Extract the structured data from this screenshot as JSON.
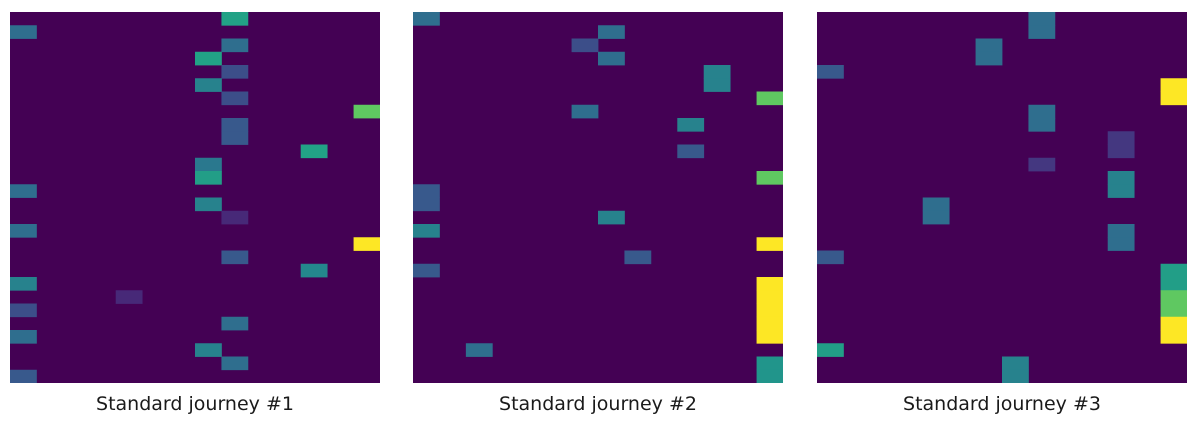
{
  "chart_data": [
    {
      "type": "heatmap",
      "title": "Standard journey #1",
      "rows": 28,
      "cols": 14,
      "colormap": "viridis",
      "value_range": [
        0,
        1
      ],
      "background_value": 0,
      "cells": [
        {
          "row": 0,
          "col": 8,
          "value": 0.72
        },
        {
          "row": 1,
          "col": 0,
          "value": 0.45
        },
        {
          "row": 2,
          "col": 8,
          "value": 0.45
        },
        {
          "row": 3,
          "col": 7,
          "value": 0.72
        },
        {
          "row": 4,
          "col": 8,
          "value": 0.3
        },
        {
          "row": 5,
          "col": 7,
          "value": 0.55
        },
        {
          "row": 6,
          "col": 8,
          "value": 0.3
        },
        {
          "row": 7,
          "col": 13,
          "value": 0.85
        },
        {
          "row": 8,
          "col": 8,
          "value": 0.35
        },
        {
          "row": 9,
          "col": 8,
          "value": 0.35
        },
        {
          "row": 10,
          "col": 11,
          "value": 0.72
        },
        {
          "row": 11,
          "col": 7,
          "value": 0.5
        },
        {
          "row": 12,
          "col": 7,
          "value": 0.7
        },
        {
          "row": 13,
          "col": 0,
          "value": 0.45
        },
        {
          "row": 14,
          "col": 7,
          "value": 0.55
        },
        {
          "row": 15,
          "col": 8,
          "value": 0.15
        },
        {
          "row": 16,
          "col": 0,
          "value": 0.45
        },
        {
          "row": 17,
          "col": 13,
          "value": 1.0
        },
        {
          "row": 18,
          "col": 8,
          "value": 0.35
        },
        {
          "row": 19,
          "col": 11,
          "value": 0.58
        },
        {
          "row": 20,
          "col": 0,
          "value": 0.55
        },
        {
          "row": 21,
          "col": 4,
          "value": 0.15
        },
        {
          "row": 22,
          "col": 0,
          "value": 0.3
        },
        {
          "row": 23,
          "col": 8,
          "value": 0.45
        },
        {
          "row": 24,
          "col": 0,
          "value": 0.45
        },
        {
          "row": 25,
          "col": 7,
          "value": 0.55
        },
        {
          "row": 26,
          "col": 8,
          "value": 0.45
        },
        {
          "row": 27,
          "col": 0,
          "value": 0.35
        }
      ]
    },
    {
      "type": "heatmap",
      "title": "Standard journey #2",
      "rows": 28,
      "cols": 14,
      "colormap": "viridis",
      "value_range": [
        0,
        1
      ],
      "background_value": 0,
      "cells": [
        {
          "row": 0,
          "col": 0,
          "value": 0.45
        },
        {
          "row": 1,
          "col": 7,
          "value": 0.45
        },
        {
          "row": 2,
          "col": 6,
          "value": 0.3
        },
        {
          "row": 3,
          "col": 7,
          "value": 0.45
        },
        {
          "row": 4,
          "col": 11,
          "value": 0.55
        },
        {
          "row": 5,
          "col": 11,
          "value": 0.55
        },
        {
          "row": 6,
          "col": 13,
          "value": 0.85
        },
        {
          "row": 7,
          "col": 6,
          "value": 0.45
        },
        {
          "row": 8,
          "col": 10,
          "value": 0.55
        },
        {
          "row": 10,
          "col": 10,
          "value": 0.35
        },
        {
          "row": 12,
          "col": 13,
          "value": 0.85
        },
        {
          "row": 13,
          "col": 0,
          "value": 0.35
        },
        {
          "row": 14,
          "col": 0,
          "value": 0.35
        },
        {
          "row": 15,
          "col": 7,
          "value": 0.55
        },
        {
          "row": 16,
          "col": 0,
          "value": 0.55
        },
        {
          "row": 17,
          "col": 13,
          "value": 1.0
        },
        {
          "row": 18,
          "col": 8,
          "value": 0.35
        },
        {
          "row": 19,
          "col": 0,
          "value": 0.35
        },
        {
          "row": 20,
          "col": 13,
          "value": 1.0
        },
        {
          "row": 21,
          "col": 13,
          "value": 1.0
        },
        {
          "row": 22,
          "col": 13,
          "value": 1.0
        },
        {
          "row": 23,
          "col": 13,
          "value": 1.0
        },
        {
          "row": 24,
          "col": 13,
          "value": 1.0
        },
        {
          "row": 25,
          "col": 2,
          "value": 0.45
        },
        {
          "row": 26,
          "col": 13,
          "value": 0.65
        },
        {
          "row": 27,
          "col": 13,
          "value": 0.65
        }
      ]
    },
    {
      "type": "heatmap",
      "title": "Standard journey #3",
      "rows": 28,
      "cols": 14,
      "colormap": "viridis",
      "value_range": [
        0,
        1
      ],
      "background_value": 0,
      "cells": [
        {
          "row": 0,
          "col": 8,
          "value": 0.45
        },
        {
          "row": 1,
          "col": 8,
          "value": 0.45
        },
        {
          "row": 2,
          "col": 6,
          "value": 0.45
        },
        {
          "row": 3,
          "col": 6,
          "value": 0.45
        },
        {
          "row": 4,
          "col": 0,
          "value": 0.35
        },
        {
          "row": 5,
          "col": 13,
          "value": 1.0
        },
        {
          "row": 6,
          "col": 13,
          "value": 1.0
        },
        {
          "row": 7,
          "col": 8,
          "value": 0.45
        },
        {
          "row": 8,
          "col": 8,
          "value": 0.45
        },
        {
          "row": 9,
          "col": 11,
          "value": 0.2
        },
        {
          "row": 10,
          "col": 11,
          "value": 0.2
        },
        {
          "row": 11,
          "col": 8,
          "value": 0.2
        },
        {
          "row": 12,
          "col": 11,
          "value": 0.55
        },
        {
          "row": 13,
          "col": 11,
          "value": 0.55
        },
        {
          "row": 14,
          "col": 4,
          "value": 0.45
        },
        {
          "row": 15,
          "col": 4,
          "value": 0.45
        },
        {
          "row": 16,
          "col": 11,
          "value": 0.45
        },
        {
          "row": 17,
          "col": 11,
          "value": 0.45
        },
        {
          "row": 18,
          "col": 0,
          "value": 0.35
        },
        {
          "row": 19,
          "col": 13,
          "value": 0.7
        },
        {
          "row": 20,
          "col": 13,
          "value": 0.7
        },
        {
          "row": 21,
          "col": 13,
          "value": 0.85
        },
        {
          "row": 22,
          "col": 13,
          "value": 0.85
        },
        {
          "row": 23,
          "col": 13,
          "value": 1.0
        },
        {
          "row": 24,
          "col": 13,
          "value": 1.0
        },
        {
          "row": 25,
          "col": 0,
          "value": 0.7
        },
        {
          "row": 26,
          "col": 7,
          "value": 0.55
        },
        {
          "row": 27,
          "col": 7,
          "value": 0.55
        }
      ]
    }
  ]
}
